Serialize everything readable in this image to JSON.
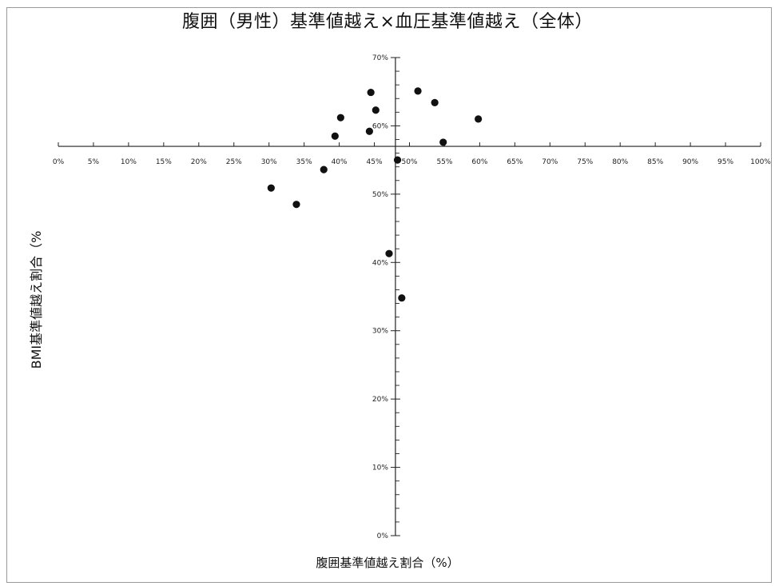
{
  "chart_data": {
    "type": "scatter",
    "title": "腹囲（男性）基準値越え×血圧基準値越え（全体）",
    "xlabel": "腹囲基準値越え割合（%）",
    "ylabel": "BMI基準値越え割合（%",
    "xlim": [
      0,
      100
    ],
    "ylim": [
      0,
      70
    ],
    "x_ticks": [
      "0%",
      "5%",
      "10%",
      "15%",
      "20%",
      "25%",
      "30%",
      "35%",
      "40%",
      "45%",
      "50%",
      "55%",
      "60%",
      "65%",
      "70%",
      "75%",
      "80%",
      "85%",
      "90%",
      "95%",
      "100%"
    ],
    "y_ticks": [
      "0%",
      "10%",
      "20%",
      "30%",
      "40%",
      "50%",
      "60%",
      "70%"
    ],
    "axes_cross": {
      "x": 48,
      "y": 57
    },
    "grid": false,
    "legend": "none",
    "marker_color": "#111111",
    "points": [
      {
        "x": 30.3,
        "y": 50.9
      },
      {
        "x": 33.9,
        "y": 48.5
      },
      {
        "x": 37.8,
        "y": 53.6
      },
      {
        "x": 39.4,
        "y": 58.5
      },
      {
        "x": 40.2,
        "y": 61.2
      },
      {
        "x": 44.3,
        "y": 59.2
      },
      {
        "x": 44.5,
        "y": 64.9
      },
      {
        "x": 45.2,
        "y": 62.3
      },
      {
        "x": 47.1,
        "y": 41.3
      },
      {
        "x": 48.3,
        "y": 55.0
      },
      {
        "x": 48.9,
        "y": 34.8
      },
      {
        "x": 51.2,
        "y": 65.1
      },
      {
        "x": 53.6,
        "y": 63.4
      },
      {
        "x": 54.8,
        "y": 57.6
      },
      {
        "x": 59.8,
        "y": 61.0
      }
    ]
  }
}
